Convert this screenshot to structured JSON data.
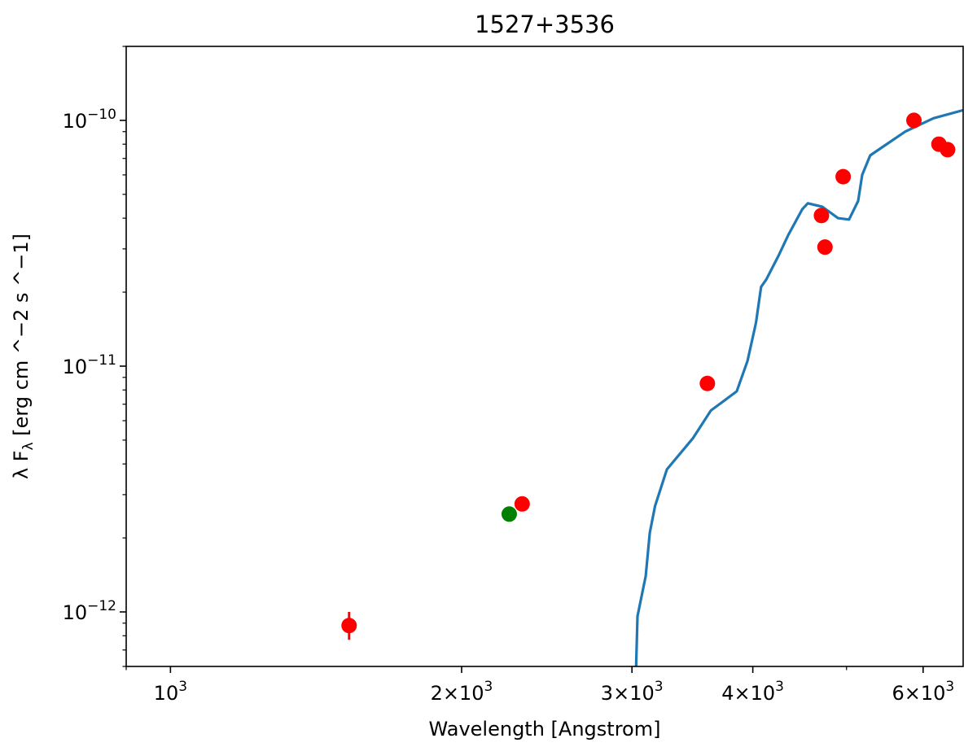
{
  "chart_data": {
    "type": "scatter",
    "title": "1527+3536",
    "xlabel": "Wavelength [Angstrom]",
    "ylabel": "λ F_λ [erg cm ^−2 s ^−1]",
    "x_scale": "log",
    "y_scale": "log",
    "xlim": [
      900,
      6600
    ],
    "ylim": [
      6e-13,
      2e-10
    ],
    "grid": false,
    "x_ticks": [
      {
        "value": 1000,
        "base": "10",
        "exp": "3"
      },
      {
        "value": 2000,
        "mant": "2",
        "base": "10",
        "exp": "3"
      },
      {
        "value": 3000,
        "mant": "3",
        "base": "10",
        "exp": "3"
      },
      {
        "value": 4000,
        "mant": "4",
        "base": "10",
        "exp": "3"
      },
      {
        "value": 6000,
        "mant": "6",
        "base": "10",
        "exp": "3"
      }
    ],
    "y_ticks": [
      {
        "value": 1e-12,
        "base": "10",
        "exp": "−12"
      },
      {
        "value": 1e-11,
        "base": "10",
        "exp": "−11"
      },
      {
        "value": 1e-10,
        "base": "10",
        "exp": "−10"
      }
    ],
    "series": [
      {
        "type": "line",
        "color": "#1f77b4",
        "points": [
          [
            3030,
            6e-13
          ],
          [
            3040,
            9.6e-13
          ],
          [
            3100,
            1.4e-12
          ],
          [
            3130,
            2.1e-12
          ],
          [
            3170,
            2.7e-12
          ],
          [
            3260,
            3.8e-12
          ],
          [
            3470,
            5.1e-12
          ],
          [
            3620,
            6.6e-12
          ],
          [
            3850,
            7.9e-12
          ],
          [
            3950,
            1.05e-11
          ],
          [
            4030,
            1.5e-11
          ],
          [
            4080,
            2.1e-11
          ],
          [
            4130,
            2.25e-11
          ],
          [
            4250,
            2.8e-11
          ],
          [
            4350,
            3.4e-11
          ],
          [
            4500,
            4.35e-11
          ],
          [
            4560,
            4.6e-11
          ],
          [
            4720,
            4.45e-11
          ],
          [
            4900,
            4e-11
          ],
          [
            5030,
            3.95e-11
          ],
          [
            5140,
            4.7e-11
          ],
          [
            5190,
            6e-11
          ],
          [
            5290,
            7.2e-11
          ],
          [
            5450,
            7.8e-11
          ],
          [
            5750,
            9e-11
          ],
          [
            6150,
            1.02e-10
          ],
          [
            6600,
            1.1e-10
          ]
        ]
      },
      {
        "type": "scatter",
        "color": "#ff0000",
        "points": [
          {
            "x": 1530,
            "y": 8.8e-13,
            "yerr": [
              7.7e-13,
              1e-12
            ]
          },
          {
            "x": 2310,
            "y": 2.75e-12
          },
          {
            "x": 3590,
            "y": 8.5e-12
          },
          {
            "x": 4710,
            "y": 4.1e-11
          },
          {
            "x": 4750,
            "y": 3.05e-11
          },
          {
            "x": 4960,
            "y": 5.9e-11
          },
          {
            "x": 5870,
            "y": 1e-10
          },
          {
            "x": 6230,
            "y": 8e-11
          },
          {
            "x": 6360,
            "y": 7.6e-11
          }
        ]
      },
      {
        "type": "scatter",
        "color": "#008000",
        "points": [
          {
            "x": 2240,
            "y": 2.5e-12
          }
        ]
      }
    ]
  }
}
